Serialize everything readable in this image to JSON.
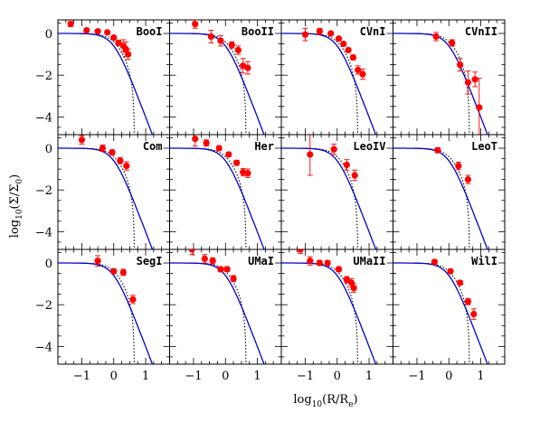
{
  "figure": {
    "xlabel_parts": [
      "log",
      "10",
      "(R/R",
      "e",
      ")"
    ],
    "ylabel_parts": [
      "log",
      "10",
      "(Σ/Σ",
      "0",
      ")"
    ],
    "x_tick_labels": [
      "−1",
      "0",
      "1"
    ],
    "y_tick_labels": [
      "0",
      "−2",
      "−4"
    ]
  },
  "chart_data": {
    "type": "scatter",
    "layout": "3x4 grid of panels with shared axes",
    "xlim": [
      -1.75,
      1.75
    ],
    "ylim": [
      -4.85,
      0.65
    ],
    "x_ticks": [
      -1,
      0,
      1
    ],
    "y_ticks": [
      0,
      -2,
      -4
    ],
    "colors": {
      "points": "#ff0000",
      "model_curve": "#0000cc",
      "truncated_curve": "#000000",
      "frame": "#000000"
    },
    "model": {
      "description": "Plummer-like profile log10 Σ/Σ0 = -2*log10(1+(R/a)^2), solid blue",
      "truncated": "King-like profile with tidal truncation near log10(R/Re)≈0.65, dotted black"
    },
    "panels": [
      {
        "name": "BooI",
        "points": [
          [
            -1.35,
            0.45
          ],
          [
            -0.85,
            0.15
          ],
          [
            -0.5,
            0.1
          ],
          [
            -0.2,
            0.05
          ],
          [
            0.0,
            -0.2
          ],
          [
            0.15,
            -0.45
          ],
          [
            0.3,
            -0.6
          ],
          [
            0.38,
            -0.75
          ],
          [
            0.45,
            -1.0
          ]
        ],
        "errors": [
          0.12,
          0.08,
          0.06,
          0.06,
          0.08,
          0.12,
          0.3,
          0.35,
          0.25
        ]
      },
      {
        "name": "BooII",
        "points": [
          [
            -0.95,
            0.45
          ],
          [
            -0.45,
            -0.15
          ],
          [
            -0.15,
            -0.35
          ],
          [
            0.2,
            -0.55
          ],
          [
            0.4,
            -0.8
          ],
          [
            0.55,
            -1.55
          ],
          [
            0.7,
            -1.65
          ]
        ],
        "errors": [
          0.2,
          0.3,
          0.25,
          0.15,
          0.2,
          0.35,
          0.3
        ]
      },
      {
        "name": "CVnI",
        "points": [
          [
            -1.0,
            -0.05
          ],
          [
            -0.55,
            0.1
          ],
          [
            -0.2,
            0.0
          ],
          [
            0.05,
            -0.25
          ],
          [
            0.2,
            -0.5
          ],
          [
            0.35,
            -0.8
          ],
          [
            0.5,
            -1.15
          ],
          [
            0.65,
            -1.75
          ],
          [
            0.8,
            -1.95
          ]
        ],
        "errors": [
          0.3,
          0.15,
          0.08,
          0.08,
          0.08,
          0.1,
          0.12,
          0.2,
          0.25
        ]
      },
      {
        "name": "CVnII",
        "points": [
          [
            -0.4,
            -0.15
          ],
          [
            0.1,
            -0.45
          ],
          [
            0.35,
            -1.5
          ],
          [
            0.6,
            -2.35
          ],
          [
            0.82,
            -2.2
          ],
          [
            0.95,
            -3.55
          ]
        ],
        "errors": [
          0.2,
          0.15,
          0.3,
          0.55,
          0.35,
          1.4
        ]
      },
      {
        "name": "Com",
        "points": [
          [
            -1.0,
            0.4
          ],
          [
            -0.35,
            0.0
          ],
          [
            -0.05,
            -0.2
          ],
          [
            0.2,
            -0.6
          ],
          [
            0.4,
            -0.85
          ]
        ],
        "errors": [
          0.2,
          0.15,
          0.12,
          0.15,
          0.2
        ]
      },
      {
        "name": "Her",
        "points": [
          [
            -0.95,
            0.45
          ],
          [
            -0.6,
            0.25
          ],
          [
            -0.2,
            0.0
          ],
          [
            0.1,
            -0.3
          ],
          [
            0.35,
            -0.7
          ],
          [
            0.55,
            -1.15
          ],
          [
            0.7,
            -1.2
          ]
        ],
        "errors": [
          0.35,
          0.15,
          0.1,
          0.1,
          0.12,
          0.18,
          0.2
        ]
      },
      {
        "name": "LeoIV",
        "points": [
          [
            -0.85,
            -0.3
          ],
          [
            -0.1,
            -0.05
          ],
          [
            0.3,
            -0.8
          ],
          [
            0.55,
            -1.3
          ]
        ],
        "errors": [
          1.0,
          0.25,
          0.25,
          0.25
        ]
      },
      {
        "name": "LeoT",
        "points": [
          [
            -0.35,
            -0.1
          ],
          [
            0.3,
            -0.85
          ],
          [
            0.6,
            -1.5
          ]
        ],
        "errors": [
          0.12,
          0.18,
          0.2
        ]
      },
      {
        "name": "SegI",
        "points": [
          [
            -0.5,
            0.1
          ],
          [
            0.0,
            -0.4
          ],
          [
            0.3,
            -0.45
          ],
          [
            0.6,
            -1.75
          ]
        ],
        "errors": [
          0.25,
          0.12,
          0.15,
          0.2
        ]
      },
      {
        "name": "UMaI",
        "points": [
          [
            -1.05,
            0.65
          ],
          [
            -0.65,
            0.2
          ],
          [
            -0.4,
            0.1
          ],
          [
            -0.15,
            -0.3
          ],
          [
            0.05,
            -0.3
          ],
          [
            0.25,
            -0.75
          ]
        ],
        "errors": [
          0.25,
          0.2,
          0.15,
          0.12,
          0.12,
          0.15
        ]
      },
      {
        "name": "UMaII",
        "points": [
          [
            -1.15,
            0.65
          ],
          [
            -0.85,
            0.1
          ],
          [
            -0.55,
            0.0
          ],
          [
            -0.3,
            0.0
          ],
          [
            0.05,
            -0.3
          ],
          [
            0.3,
            -0.8
          ],
          [
            0.45,
            -0.95
          ],
          [
            0.52,
            -1.2
          ]
        ],
        "errors": [
          0.2,
          0.2,
          0.12,
          0.1,
          0.12,
          0.15,
          0.2,
          0.2
        ]
      },
      {
        "name": "WilI",
        "points": [
          [
            -0.45,
            0.05
          ],
          [
            0.05,
            -0.4
          ],
          [
            0.35,
            -0.95
          ],
          [
            0.6,
            -1.85
          ],
          [
            0.78,
            -2.45
          ]
        ],
        "errors": [
          0.1,
          0.1,
          0.1,
          0.15,
          0.25
        ]
      }
    ]
  }
}
